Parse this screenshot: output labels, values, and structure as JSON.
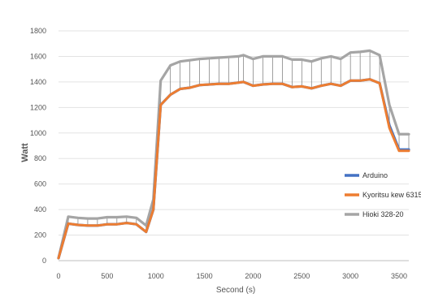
{
  "chart_data": {
    "type": "line",
    "title": "",
    "xlabel": "Second (s)",
    "ylabel": "Watt",
    "xlim": [
      0,
      3600
    ],
    "ylim": [
      0,
      1800
    ],
    "xticks": [
      0,
      500,
      1000,
      1500,
      2000,
      2500,
      3000,
      3500
    ],
    "yticks": [
      0,
      200,
      400,
      600,
      800,
      1000,
      1200,
      1400,
      1600,
      1800
    ],
    "grid": "horizontal",
    "legend_position": "right",
    "x": [
      0,
      100,
      200,
      300,
      400,
      500,
      600,
      700,
      800,
      900,
      975,
      1050,
      1150,
      1250,
      1350,
      1450,
      1550,
      1650,
      1750,
      1850,
      1900,
      2000,
      2100,
      2200,
      2300,
      2400,
      2500,
      2600,
      2700,
      2800,
      2900,
      3000,
      3100,
      3200,
      3300,
      3400,
      3500,
      3600
    ],
    "series": [
      {
        "name": "Arduino",
        "color": "#4472C4",
        "values": [
          20,
          290,
          280,
          275,
          275,
          285,
          285,
          295,
          285,
          225,
          400,
          1220,
          1300,
          1345,
          1355,
          1375,
          1380,
          1385,
          1385,
          1395,
          1400,
          1370,
          1380,
          1385,
          1385,
          1360,
          1365,
          1350,
          1370,
          1385,
          1370,
          1410,
          1410,
          1420,
          1390,
          1060,
          870,
          870
        ]
      },
      {
        "name": "Kyoritsu kew 6315",
        "color": "#ED7D31",
        "values": [
          20,
          290,
          280,
          275,
          275,
          285,
          285,
          295,
          285,
          225,
          400,
          1220,
          1300,
          1345,
          1355,
          1375,
          1380,
          1385,
          1385,
          1395,
          1400,
          1370,
          1380,
          1385,
          1385,
          1360,
          1365,
          1350,
          1370,
          1385,
          1370,
          1410,
          1410,
          1420,
          1390,
          1040,
          860,
          860
        ]
      },
      {
        "name": "Hioki 328-20",
        "color": "#A5A5A5",
        "values": [
          20,
          345,
          335,
          330,
          330,
          340,
          340,
          345,
          335,
          275,
          480,
          1410,
          1530,
          1560,
          1570,
          1580,
          1585,
          1590,
          1595,
          1600,
          1610,
          1580,
          1600,
          1600,
          1600,
          1575,
          1575,
          1560,
          1585,
          1600,
          1580,
          1630,
          1635,
          1645,
          1610,
          1220,
          990,
          990
        ]
      }
    ]
  }
}
